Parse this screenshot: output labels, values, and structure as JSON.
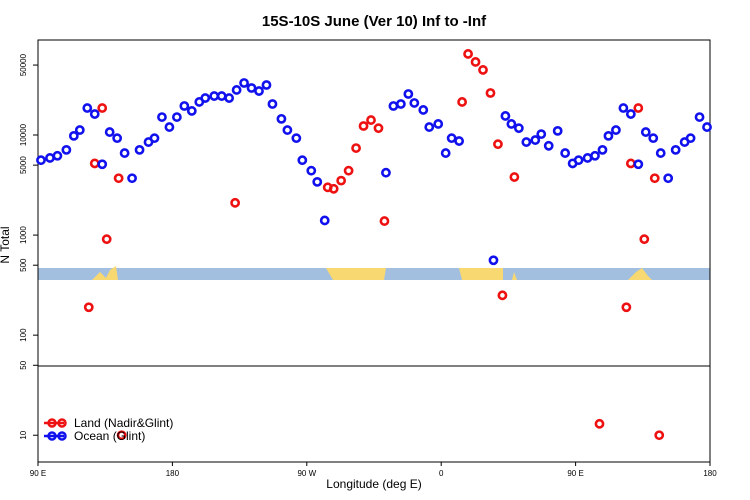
{
  "chart_data": {
    "type": "scatter",
    "title": "15S-10S June (Ver 10)   Inf to -Inf",
    "x_label": "Longitude (deg E)",
    "y_label": "N Total",
    "xlim": [
      -270,
      180
    ],
    "xticks": [
      {
        "value": -270,
        "label": "90 E"
      },
      {
        "value": -180,
        "label": "180"
      },
      {
        "value": -90,
        "label": "90 W"
      },
      0,
      {
        "value": 90,
        "label": "90 E"
      },
      {
        "value": 180,
        "label": "180"
      }
    ],
    "ylim": [
      5.4,
      89000
    ],
    "log_y": true,
    "yticks": [
      10,
      50,
      100,
      500,
      1000,
      5000,
      10000,
      50000
    ],
    "legend": "bottom-left",
    "series": [
      {
        "name": "Land (Nadir&Glint)",
        "color": "#ee1111",
        "x": [
          -236,
          -232,
          -227,
          -224,
          -216,
          -214,
          -138,
          -76,
          -72,
          -67,
          -62,
          -57,
          -52,
          -47,
          -42,
          -38,
          14,
          18,
          23,
          28,
          33,
          38,
          41,
          49,
          106,
          124,
          127,
          132,
          136,
          143,
          146
        ],
        "values": [
          190,
          5200,
          18600,
          910,
          3700,
          10,
          2100,
          3000,
          2900,
          3500,
          4400,
          7400,
          12300,
          14100,
          11700,
          1380,
          21400,
          64600,
          53700,
          44700,
          26300,
          8100,
          250,
          3800,
          13,
          190,
          5200,
          18600,
          910,
          3700,
          10
        ]
      },
      {
        "name": "Ocean (Glint)",
        "color": "#1111ee",
        "x": [
          -268,
          -262,
          -257,
          -251,
          -246,
          -242,
          -237,
          -232,
          -227,
          -222,
          -217,
          -212,
          -207,
          -202,
          -196,
          -192,
          -187,
          -182,
          -177,
          -172,
          -167,
          -162,
          -158,
          -152,
          -147,
          -142,
          -137,
          -132,
          -127,
          -122,
          -117,
          -113,
          -107,
          -103,
          -97,
          -93,
          -87,
          -83,
          -78,
          -37,
          -32,
          -27,
          -22,
          -18,
          -12,
          -8,
          -2,
          3,
          7,
          12,
          35,
          43,
          47,
          52,
          57,
          63,
          67,
          72,
          78,
          83,
          88,
          92,
          98,
          103,
          108,
          112,
          117,
          122,
          127,
          132,
          137,
          142,
          147,
          152,
          157,
          163,
          167,
          173,
          178
        ],
        "values": [
          5600,
          5900,
          6200,
          7100,
          9800,
          11200,
          18600,
          16200,
          5100,
          10700,
          9300,
          6600,
          3700,
          7100,
          8500,
          9300,
          15100,
          12000,
          15100,
          19500,
          17400,
          21400,
          23400,
          24500,
          24500,
          23400,
          28200,
          33100,
          29500,
          27500,
          31600,
          20400,
          14500,
          11200,
          9300,
          5600,
          4400,
          3400,
          1400,
          4200,
          19500,
          20400,
          25700,
          20900,
          17800,
          12000,
          12900,
          6600,
          9300,
          8700,
          560,
          15500,
          12900,
          11700,
          8500,
          8900,
          10200,
          7800,
          11000,
          6600,
          5200,
          5600,
          5900,
          6200,
          7100,
          9800,
          11200,
          18600,
          16200,
          5100,
          10700,
          9300,
          6600,
          3700,
          7100,
          8500,
          9300,
          15100,
          12000
        ]
      }
    ]
  }
}
